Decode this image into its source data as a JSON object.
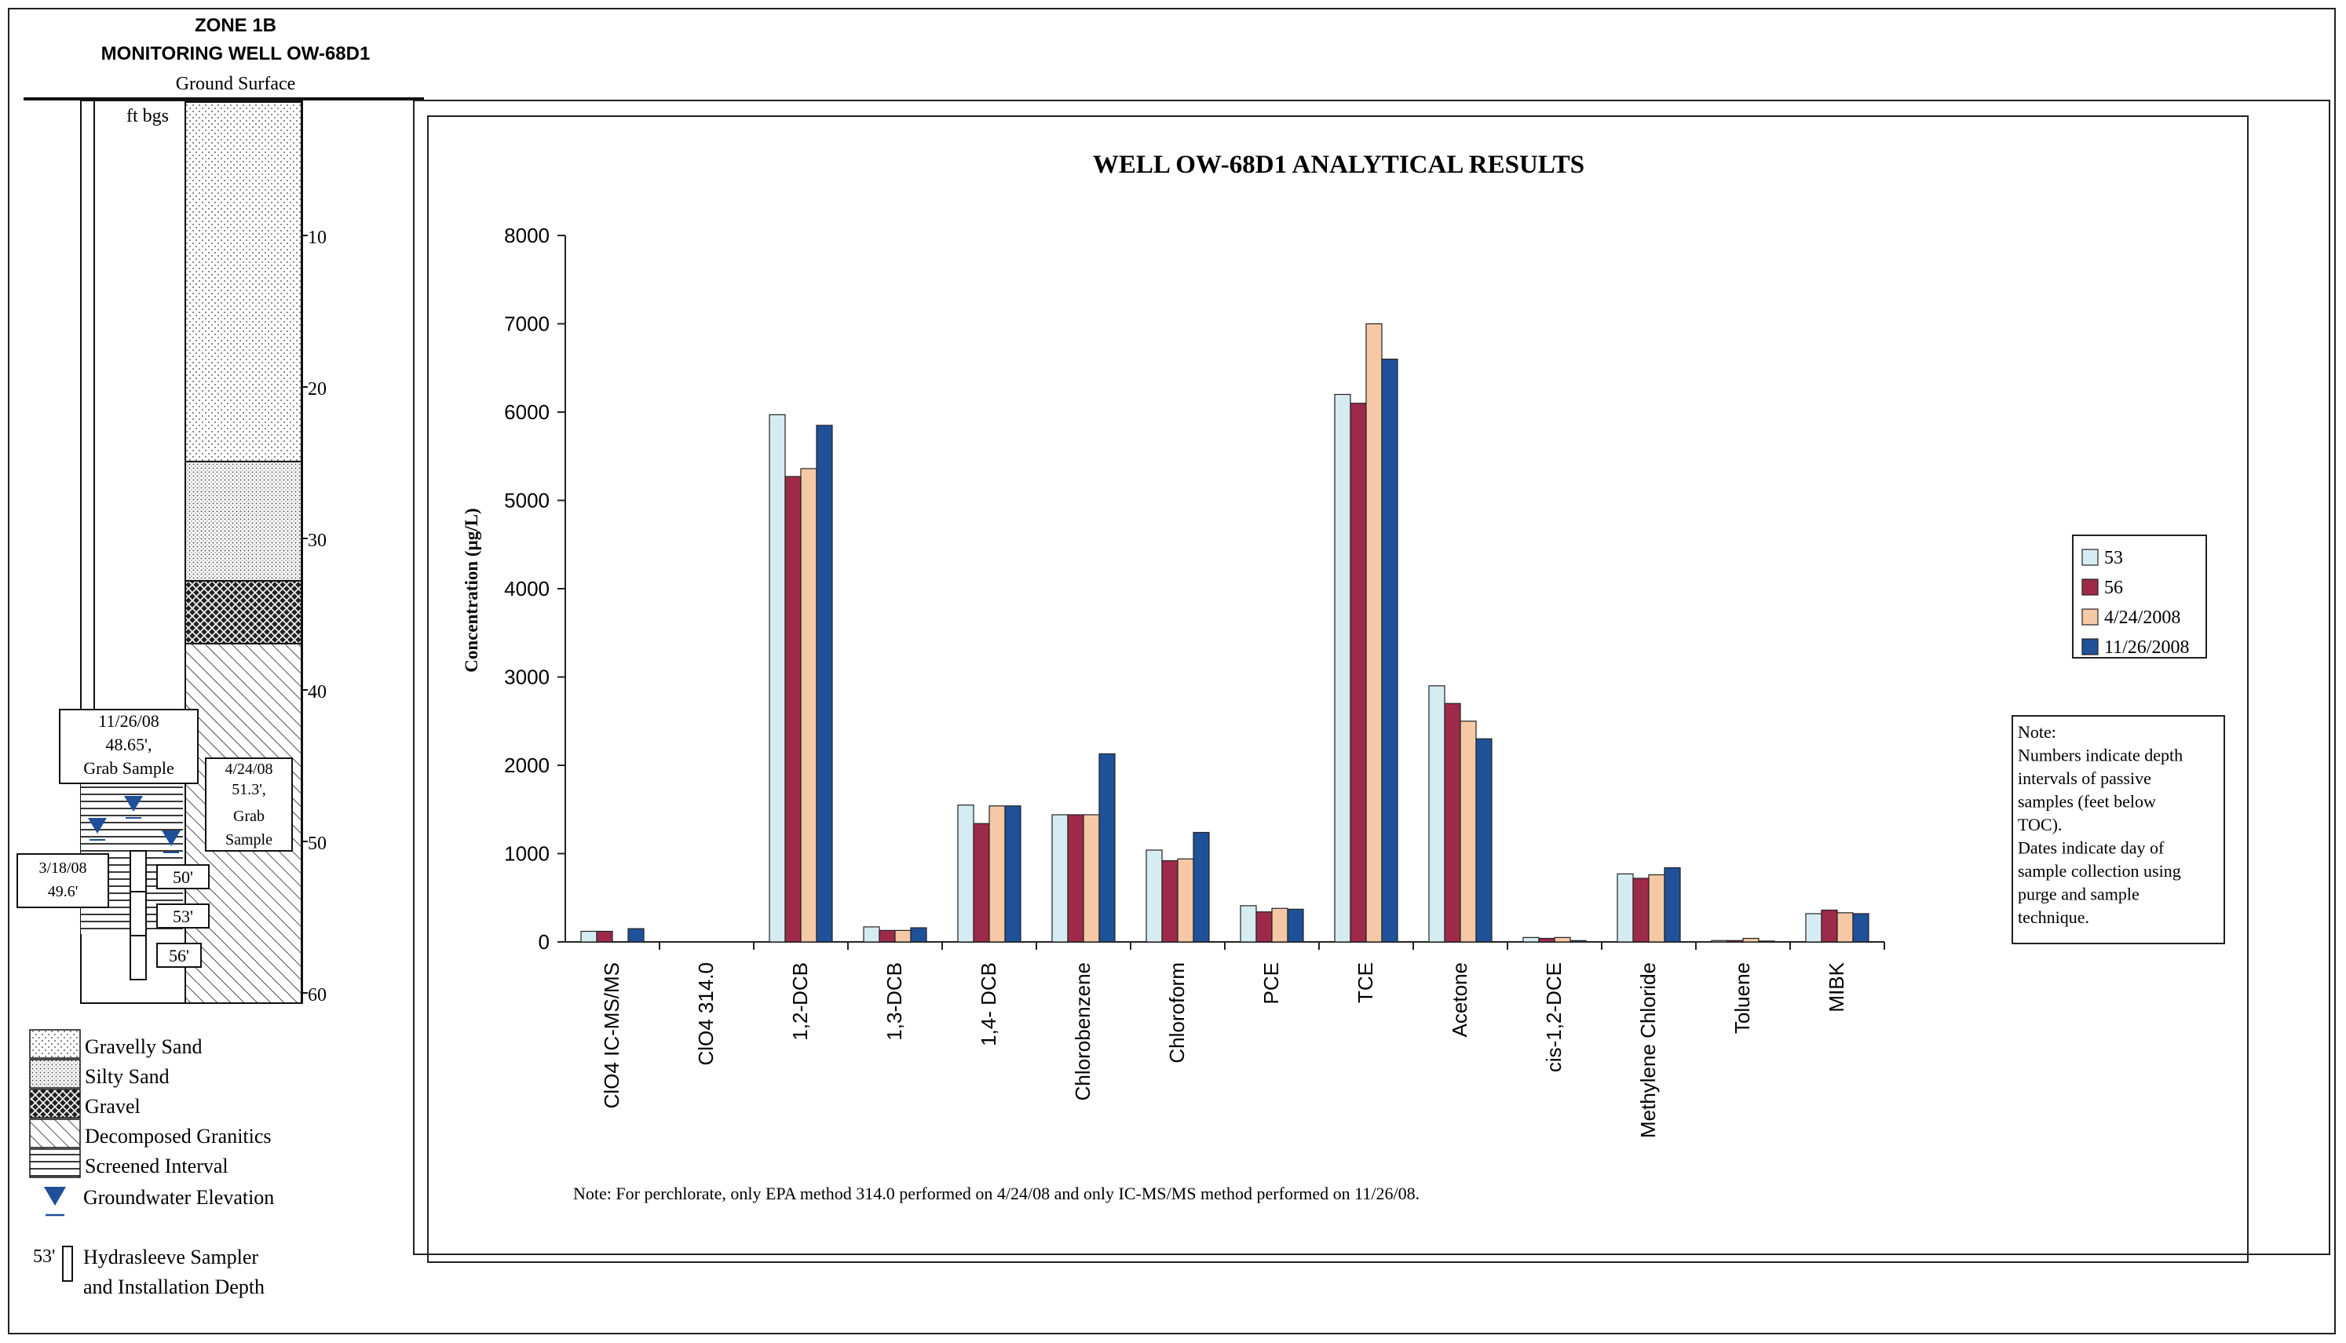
{
  "well_log": {
    "zone": "ZONE 1B",
    "well": "MONITORING WELL OW-68D1",
    "ground_surface": "Ground Surface",
    "units": "ft bgs",
    "depth_ticks": [
      "10",
      "20",
      "30",
      "40",
      "50",
      "60"
    ],
    "callouts": {
      "nov": [
        "11/26/08",
        "48.65',",
        "Grab Sample"
      ],
      "apr": [
        "4/24/08",
        "51.3',",
        "Grab",
        "Sample"
      ],
      "mar": [
        "3/18/08",
        "49.6'"
      ]
    },
    "sampler_depths": [
      "50'",
      "53'",
      "56'"
    ]
  },
  "legend_log": {
    "items": [
      "Gravelly Sand",
      "Silty Sand",
      "Gravel",
      "Decomposed Granitics",
      "Screened Interval",
      "Groundwater Elevation"
    ],
    "sampler_depth": "53'",
    "sampler_label": [
      "Hydrasleeve Sampler",
      "and Installation Depth"
    ]
  },
  "chart_data": {
    "type": "bar",
    "title": "WELL OW-68D1 ANALYTICAL RESULTS",
    "ylabel": "Concentration (µg/L)",
    "xlabel": "",
    "ylim": [
      0,
      8000
    ],
    "yticks": [
      0,
      1000,
      2000,
      3000,
      4000,
      5000,
      6000,
      7000,
      8000
    ],
    "categories": [
      "ClO4 IC-MS/MS",
      "ClO4 314.0",
      "1,2-DCB",
      "1,3-DCB",
      "1,4- DCB",
      "Chlorobenzene",
      "Chloroform",
      "PCE",
      "TCE",
      "Acetone",
      "cis-1,2-DCE",
      "Methylene Chloride",
      "Toluene",
      "MIBK"
    ],
    "series": [
      {
        "name": "53",
        "color": "#d6ecf3",
        "values": [
          120,
          0,
          5970,
          170,
          1550,
          1440,
          1040,
          410,
          6200,
          2900,
          50,
          770,
          15,
          320
        ]
      },
      {
        "name": "56",
        "color": "#9e2a4a",
        "values": [
          120,
          0,
          5270,
          130,
          1340,
          1440,
          920,
          340,
          6100,
          2700,
          40,
          720,
          15,
          360
        ]
      },
      {
        "name": "4/24/2008",
        "color": "#f6c9a6",
        "values": [
          0,
          0,
          5360,
          130,
          1540,
          1440,
          940,
          380,
          7000,
          2500,
          50,
          760,
          40,
          330
        ]
      },
      {
        "name": "11/26/2008",
        "color": "#1f5199",
        "values": [
          150,
          0,
          5850,
          160,
          1540,
          2130,
          1240,
          370,
          6600,
          2300,
          15,
          840,
          10,
          320
        ]
      }
    ],
    "legend_position": "right",
    "note_box": [
      "Note:",
      "Numbers indicate depth",
      "intervals of passive",
      "samples (feet below",
      "TOC).",
      "Dates indicate day of",
      "sample collection using",
      "purge and sample",
      "technique."
    ],
    "footnote": "Note:  For perchlorate, only  EPA method 314.0 performed on 4/24/08 and only  IC-MS/MS method performed on 11/26/08."
  }
}
